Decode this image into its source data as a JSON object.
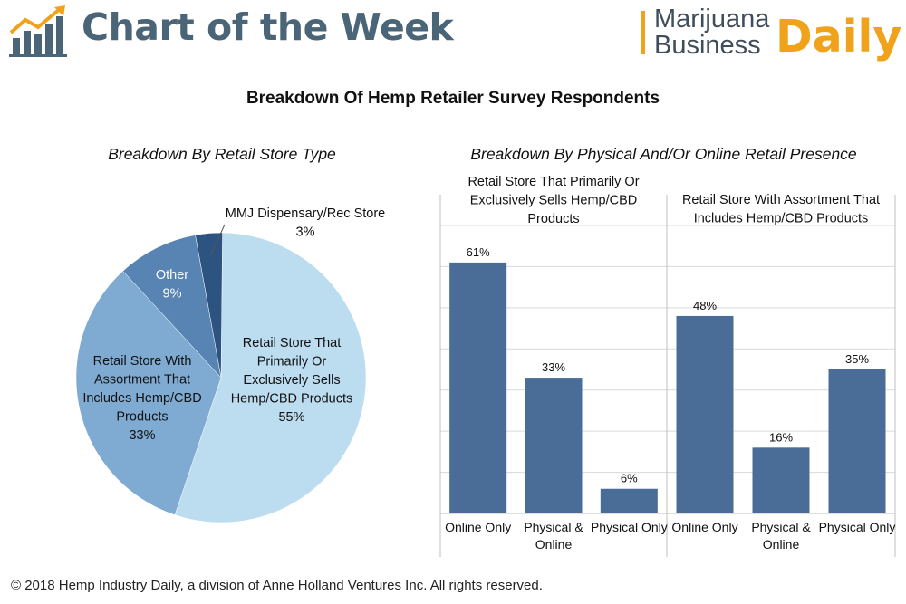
{
  "header": {
    "title": "Chart of the Week",
    "brand_line1": "Marijuana",
    "brand_line2": "Business",
    "brand_daily": "Daily",
    "brand_color": "#f0a21b",
    "title_color": "#4a6478"
  },
  "main_title": "Breakdown Of Hemp Retailer Survey Respondents",
  "footer": "© 2018 Hemp Industry Daily, a division of Anne Holland Ventures Inc. All rights reserved.",
  "chart_data": [
    {
      "type": "pie",
      "title": "Breakdown By Retail Store Type",
      "slices": [
        {
          "label_lines": [
            "Retail Store That",
            "Primarily Or",
            "Exclusively Sells",
            "Hemp/CBD Products"
          ],
          "value": 55,
          "value_label": "55%",
          "color": "#bcdcf0",
          "text_color": "#111111"
        },
        {
          "label_lines": [
            "Retail Store With",
            "Assortment That",
            "Includes Hemp/CBD",
            "Products"
          ],
          "value": 33,
          "value_label": "33%",
          "color": "#7fabd3",
          "text_color": "#111111"
        },
        {
          "label_lines": [
            "Other"
          ],
          "value": 9,
          "value_label": "9%",
          "color": "#5784b3",
          "text_color": "#ffffff"
        },
        {
          "label_lines": [
            "MMJ Dispensary/Rec Store"
          ],
          "value": 3,
          "value_label": "3%",
          "color": "#2d5380",
          "text_color": "#111111"
        }
      ]
    },
    {
      "type": "bar",
      "title": "Breakdown By Physical And/Or Online Retail Presence",
      "ylim": [
        0,
        70
      ],
      "grid": true,
      "bar_color": "#4a6d97",
      "groups": [
        {
          "name_lines": [
            "Retail Store That Primarily Or",
            "Exclusively Sells Hemp/CBD",
            "Products"
          ],
          "categories": [
            [
              "Online Only"
            ],
            [
              "Physical &",
              "Online"
            ],
            [
              "Physical Only"
            ]
          ],
          "values": [
            61,
            33,
            6
          ],
          "value_labels": [
            "61%",
            "33%",
            "6%"
          ]
        },
        {
          "name_lines": [
            "Retail Store With Assortment That",
            "Includes Hemp/CBD Products"
          ],
          "categories": [
            [
              "Online Only"
            ],
            [
              "Physical &",
              "Online"
            ],
            [
              "Physical Only"
            ]
          ],
          "values": [
            48,
            16,
            35
          ],
          "value_labels": [
            "48%",
            "16%",
            "35%"
          ]
        }
      ]
    }
  ]
}
